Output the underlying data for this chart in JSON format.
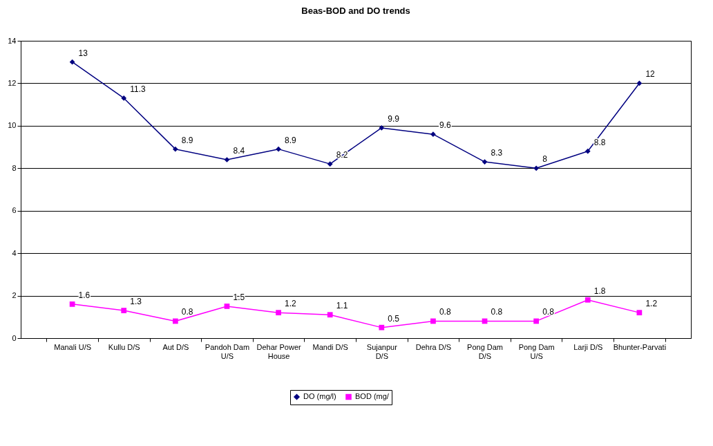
{
  "chart_data": {
    "type": "line",
    "title": "Beas-BOD and DO trends",
    "categories": [
      "Manali U/S",
      "Kullu D/S",
      "Aut D/S",
      "Pandoh Dam U/S",
      "Dehar Power House",
      "Mandi D/S",
      "Sujanpur D/S",
      "Dehra D/S",
      "Pong Dam D/S",
      "Pong Dam U/S",
      "Larji D/S",
      "Bhunter-Parvati"
    ],
    "series": [
      {
        "name": "DO (mg/l)",
        "color": "#000080",
        "marker": "diamond",
        "values": [
          13,
          11.3,
          8.9,
          8.4,
          8.9,
          8.2,
          9.9,
          9.6,
          8.3,
          8,
          8.8,
          12
        ]
      },
      {
        "name": "BOD (mg/",
        "color": "#ff00ff",
        "marker": "square",
        "values": [
          1.6,
          1.3,
          0.8,
          1.5,
          1.2,
          1.1,
          0.5,
          0.8,
          0.8,
          0.8,
          1.8,
          1.2
        ]
      }
    ],
    "ylim": [
      0,
      14
    ],
    "yticks": [
      0,
      2,
      4,
      6,
      8,
      10,
      12,
      14
    ],
    "grid": "y",
    "legend": "bottom",
    "line_style": "solid",
    "data_labels": true
  }
}
